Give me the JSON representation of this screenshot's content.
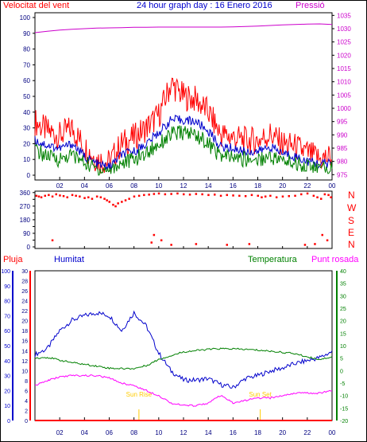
{
  "header": {
    "title": "24 hour graph day : 16 Enero 2016",
    "left_label": "Velocitat del vent",
    "right_label": "Pressió"
  },
  "compass": [
    "N",
    "W",
    "S",
    "E",
    "N"
  ],
  "lower_labels": {
    "rain": "Pluja",
    "humidity": "Humitat",
    "temperature": "Temperatura",
    "dewpoint": "Punt rosada"
  },
  "events": {
    "sunrise": "Sun Rise",
    "sunset": "Sun Set"
  },
  "x_ticks": [
    "02",
    "04",
    "06",
    "08",
    "10",
    "12",
    "14",
    "16",
    "18",
    "20",
    "22",
    "00"
  ],
  "colors": {
    "wind_gust": "#ff0000",
    "wind_avg": "#0000cc",
    "wind_min": "#008000",
    "pressure": "#cc00cc",
    "direction": "#ff0000",
    "humidity": "#0000cc",
    "temperature": "#008000",
    "dewpoint": "#ff00ff",
    "rain": "#ff0000",
    "events": "#ffcc00"
  },
  "chart_data": [
    {
      "type": "line",
      "title": "24 hour graph day : 16 Enero 2016",
      "x": [
        0,
        1,
        2,
        3,
        4,
        5,
        6,
        7,
        8,
        9,
        10,
        11,
        12,
        13,
        14,
        15,
        16,
        17,
        18,
        19,
        20,
        21,
        22,
        23,
        24
      ],
      "y_left_ticks": [
        0,
        10,
        20,
        30,
        40,
        50,
        60,
        70,
        80,
        90,
        100
      ],
      "y_right_ticks": [
        975,
        980,
        985,
        990,
        995,
        1000,
        1005,
        1010,
        1015,
        1020,
        1025,
        1030,
        1035
      ],
      "ylim_left": [
        0,
        100
      ],
      "ylim_right": [
        973,
        1036
      ],
      "series": [
        {
          "name": "Velocitat del vent",
          "axis": "left",
          "values": [
            34,
            28,
            25,
            30,
            18,
            10,
            8,
            20,
            24,
            30,
            38,
            58,
            50,
            48,
            40,
            26,
            24,
            22,
            22,
            26,
            20,
            18,
            14,
            10,
            12
          ]
        },
        {
          "axis": "left",
          "values": [
            22,
            19,
            17,
            20,
            12,
            7,
            5,
            13,
            15,
            20,
            27,
            35,
            35,
            34,
            28,
            18,
            17,
            15,
            15,
            18,
            14,
            12,
            9,
            7,
            8
          ]
        },
        {
          "axis": "left",
          "values": [
            16,
            12,
            10,
            13,
            8,
            4,
            3,
            8,
            10,
            14,
            20,
            26,
            27,
            26,
            20,
            12,
            11,
            10,
            10,
            12,
            9,
            8,
            6,
            4,
            5
          ]
        },
        {
          "name": "Pressió",
          "axis": "right",
          "values": [
            1028.5,
            1029.0,
            1029.5,
            1029.8,
            1030.0,
            1030.2,
            1030.3,
            1030.4,
            1030.5,
            1030.5,
            1030.6,
            1030.6,
            1030.6,
            1030.6,
            1030.6,
            1030.6,
            1030.7,
            1030.8,
            1031.0,
            1031.2,
            1031.4,
            1031.6,
            1031.7,
            1031.8,
            1031.6
          ]
        }
      ]
    },
    {
      "type": "scatter",
      "x": [
        0.1,
        0.3,
        0.5,
        0.8,
        1.1,
        1.4,
        1.7,
        2.0,
        2.3,
        2.6,
        3.0,
        3.3,
        3.6,
        4.0,
        4.3,
        4.6,
        5.0,
        5.3,
        5.6,
        5.8,
        6.0,
        6.3,
        6.5,
        6.7,
        7.0,
        7.3,
        7.6,
        8.0,
        8.4,
        8.8,
        9.2,
        9.6,
        10.0,
        10.5,
        11.0,
        11.5,
        12.0,
        12.5,
        13.0,
        13.5,
        14.0,
        14.5,
        15.0,
        15.5,
        16.0,
        16.5,
        17.0,
        17.5,
        18.0,
        18.3,
        18.6,
        19.0,
        19.5,
        20.0,
        20.5,
        21.0,
        21.5,
        22.0,
        22.5,
        22.8,
        23.1,
        23.4,
        23.7,
        23.9,
        1.4,
        9.6,
        9.4,
        10.2,
        11.0,
        13.0,
        15.5,
        17.3,
        21.8,
        22.6,
        23.2,
        23.6
      ],
      "y": [
        340,
        335,
        330,
        340,
        345,
        335,
        350,
        342,
        338,
        330,
        345,
        340,
        335,
        325,
        330,
        320,
        335,
        330,
        320,
        310,
        300,
        280,
        270,
        290,
        300,
        310,
        320,
        335,
        340,
        345,
        348,
        352,
        355,
        350,
        352,
        355,
        350,
        348,
        352,
        350,
        345,
        348,
        340,
        345,
        342,
        340,
        338,
        345,
        340,
        330,
        335,
        340,
        330,
        335,
        338,
        340,
        350,
        355,
        340,
        330,
        320,
        350,
        345,
        330,
        45,
        80,
        30,
        45,
        15,
        20,
        15,
        20,
        15,
        20,
        80,
        45
      ],
      "ylim": [
        0,
        380
      ],
      "y_ticks": [
        0,
        45,
        90,
        135,
        180,
        225,
        270,
        315,
        360
      ],
      "y_tick_labels": [
        "0",
        "",
        "90",
        "",
        "180",
        "",
        "270",
        "",
        "360"
      ]
    },
    {
      "type": "line",
      "x": [
        0,
        1,
        2,
        3,
        4,
        5,
        6,
        7,
        8,
        9,
        10,
        11,
        12,
        13,
        14,
        15,
        16,
        17,
        18,
        19,
        20,
        21,
        22,
        23,
        24
      ],
      "axes": {
        "humidity_ticks": [
          0,
          10,
          20,
          30,
          40,
          50,
          60,
          70,
          80,
          90,
          100
        ],
        "rain_ticks": [
          0,
          2,
          4,
          6,
          8,
          10,
          12,
          14,
          16,
          18,
          20,
          22,
          24,
          26,
          28,
          30
        ],
        "temperature_ticks": [
          -20,
          -15,
          -10,
          -5,
          0,
          5,
          10,
          15,
          20,
          25,
          30,
          35,
          40
        ]
      },
      "series": [
        {
          "name": "Humitat",
          "axis": "humidity",
          "ylim": [
            0,
            100
          ],
          "values": [
            44,
            48,
            60,
            67,
            70,
            72,
            70,
            60,
            72,
            63,
            45,
            33,
            27,
            27,
            28,
            24,
            22,
            28,
            30,
            33,
            35,
            38,
            40,
            42,
            46
          ]
        },
        {
          "name": "Temperatura",
          "axis": "temperature",
          "ylim": [
            -20,
            40
          ],
          "values": [
            5,
            5.3,
            4.2,
            3.2,
            2.5,
            1.8,
            1.0,
            0.8,
            0.8,
            2.0,
            4.5,
            6.0,
            7.5,
            8.0,
            8.5,
            8.8,
            8.7,
            8.5,
            8.2,
            7.8,
            7.3,
            6.8,
            5.5,
            4.5,
            5.5
          ]
        },
        {
          "name": "Punt rosada",
          "axis": "temperature",
          "ylim": [
            -20,
            40
          ],
          "values": [
            -6,
            -4,
            -2.5,
            -2,
            -2,
            -2,
            -3,
            -5,
            -6,
            -8,
            -10,
            -13,
            -14,
            -14,
            -13,
            -10,
            -13,
            -12,
            -11,
            -11,
            -10,
            -9,
            -9,
            -9,
            -8
          ]
        },
        {
          "name": "Pluja",
          "axis": "rain",
          "ylim": [
            0,
            30
          ],
          "values": [
            0,
            0,
            0,
            0,
            0,
            0,
            0,
            0,
            0,
            0,
            0,
            0,
            0,
            0,
            0,
            0,
            0,
            0,
            0,
            0,
            0,
            0,
            0,
            0,
            0
          ]
        }
      ],
      "sunrise_hour": 8.4,
      "sunset_hour": 18.2
    }
  ]
}
